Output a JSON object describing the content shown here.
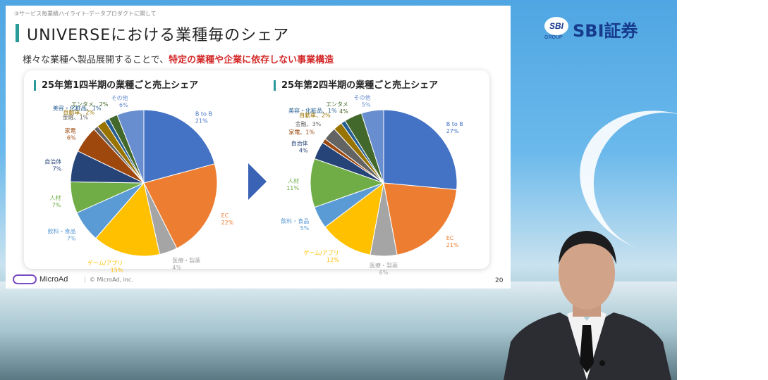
{
  "breadcrumb": "③サービス毎業績ハイライト-データプロダクトに関して",
  "title": "UNIVERSEにおける業種毎のシェア",
  "subtitle_plain": "様々な業種へ製品展開することで、",
  "subtitle_highlight": "特定の業種や企業に依存しない事業構造",
  "brand": {
    "mark": "SBI",
    "group": "GROUP",
    "name": "SBI証券"
  },
  "footer": {
    "logo": "MicroAd",
    "copyright": "© MicroAd, inc.",
    "page": "20"
  },
  "colors": {
    "accent": "#2a9b9b",
    "highlight": "#d42a2a",
    "arrow": "#3a62b5"
  },
  "chart_data": [
    {
      "type": "pie",
      "title": "25年第1四半期の業種ごと売上シェア",
      "slices": [
        {
          "name": "B to B",
          "value": 21,
          "pct": "21%",
          "color": "#4472c4"
        },
        {
          "name": "EC",
          "value": 22,
          "pct": "22%",
          "color": "#ed7d31"
        },
        {
          "name": "医療・製薬",
          "value": 4,
          "pct": "4%",
          "color": "#a5a5a5"
        },
        {
          "name": "ゲーム/アプリ",
          "value": 15,
          "pct": "15%",
          "color": "#ffc000"
        },
        {
          "name": "飲料・食品",
          "value": 7,
          "pct": "7%",
          "color": "#5b9bd5"
        },
        {
          "name": "人材",
          "value": 7,
          "pct": "7%",
          "color": "#70ad47"
        },
        {
          "name": "自治体",
          "value": 7,
          "pct": "7%",
          "color": "#264478"
        },
        {
          "name": "家電",
          "value": 6,
          "pct": "6%",
          "color": "#9e480e"
        },
        {
          "name": "金融",
          "value": 1,
          "pct": "1%",
          "color": "#636363"
        },
        {
          "name": "自動車",
          "value": 2,
          "pct": "2%",
          "color": "#997300"
        },
        {
          "name": "美容・化粧品",
          "value": 1,
          "pct": "1%",
          "color": "#255e91"
        },
        {
          "name": "エンタメ",
          "value": 2,
          "pct": "2%",
          "color": "#43682b"
        },
        {
          "name": "その他",
          "value": 6,
          "pct": "6%",
          "color": "#698ed0"
        }
      ]
    },
    {
      "type": "pie",
      "title": "25年第2四半期の業種ごと売上シェア",
      "slices": [
        {
          "name": "B to B",
          "value": 27,
          "pct": "27%",
          "color": "#4472c4"
        },
        {
          "name": "EC",
          "value": 21,
          "pct": "21%",
          "color": "#ed7d31"
        },
        {
          "name": "医療・製薬",
          "value": 6,
          "pct": "6%",
          "color": "#a5a5a5"
        },
        {
          "name": "ゲーム/アプリ",
          "value": 12,
          "pct": "12%",
          "color": "#ffc000"
        },
        {
          "name": "飲料・食品",
          "value": 5,
          "pct": "5%",
          "color": "#5b9bd5"
        },
        {
          "name": "人材",
          "value": 11,
          "pct": "11%",
          "color": "#70ad47"
        },
        {
          "name": "自治体",
          "value": 4,
          "pct": "4%",
          "color": "#264478"
        },
        {
          "name": "家電",
          "value": 1,
          "pct": "1%",
          "color": "#9e480e"
        },
        {
          "name": "金融",
          "value": 3,
          "pct": "3%",
          "color": "#636363"
        },
        {
          "name": "自動車",
          "value": 2,
          "pct": "2%",
          "color": "#997300"
        },
        {
          "name": "美容・化粧品",
          "value": 1,
          "pct": "1%",
          "color": "#255e91"
        },
        {
          "name": "エンタメ",
          "value": 4,
          "pct": "4%",
          "color": "#43682b"
        },
        {
          "name": "その他",
          "value": 5,
          "pct": "5%",
          "color": "#698ed0"
        }
      ]
    }
  ]
}
